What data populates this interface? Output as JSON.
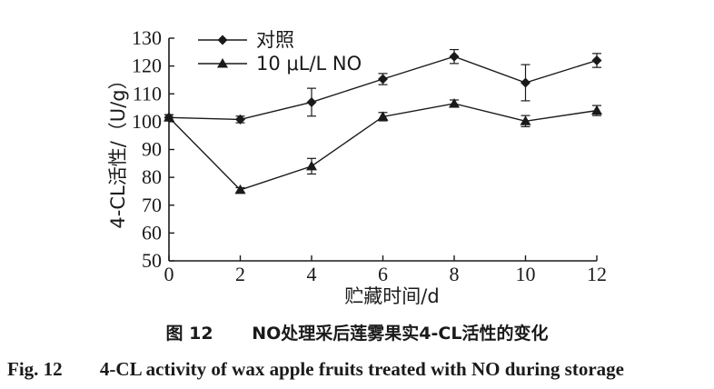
{
  "chart_data": {
    "type": "line",
    "ylabel": "4-CL活性/（U/g）",
    "xlabel": "贮藏时间/d",
    "x": [
      0,
      2,
      4,
      6,
      8,
      10,
      12
    ],
    "xlim": [
      0,
      12
    ],
    "ylim": [
      50,
      130
    ],
    "yticks": [
      50,
      60,
      70,
      80,
      90,
      100,
      110,
      120,
      130
    ],
    "xticks": [
      0,
      2,
      4,
      6,
      8,
      10,
      12
    ],
    "legend_position": "top-left",
    "series": [
      {
        "name": "对照",
        "marker": "diamond",
        "values": [
          101.5,
          100.8,
          107.0,
          115.3,
          123.4,
          114.0,
          122.0
        ],
        "errors": [
          1.0,
          1.2,
          5.0,
          2.0,
          2.5,
          6.5,
          2.5
        ]
      },
      {
        "name": "10 μL/L NO",
        "marker": "triangle",
        "values": [
          101.5,
          75.5,
          84.0,
          101.8,
          106.5,
          100.2,
          104.0
        ],
        "errors": [
          1.0,
          0.8,
          2.8,
          1.5,
          1.3,
          2.0,
          1.8
        ]
      }
    ]
  },
  "caption": {
    "cn_label": "图 12",
    "cn_text": "NO处理采后莲雾果实4-CL活性的变化",
    "en_label": "Fig. 12",
    "en_text": "4-CL activity of wax apple fruits treated with NO during storage"
  }
}
